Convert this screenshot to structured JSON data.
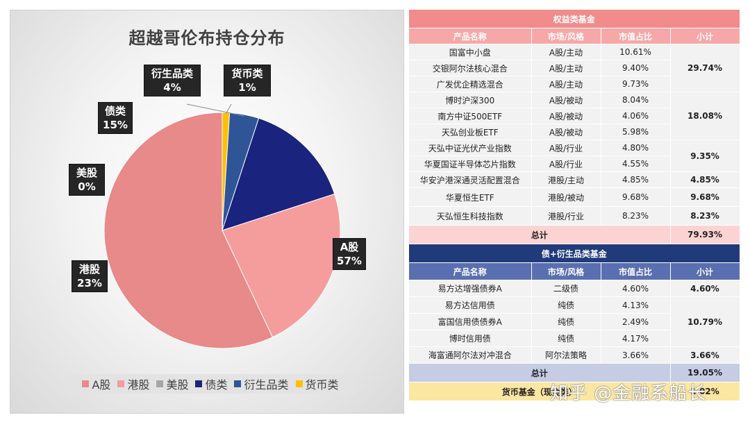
{
  "chart_data": {
    "type": "pie",
    "title": "超越哥伦布持仓分布",
    "categories": [
      "A股",
      "港股",
      "美股",
      "债类",
      "衍生品类",
      "货币类"
    ],
    "values": [
      57,
      23,
      0,
      15,
      4,
      1
    ],
    "value_labels": [
      "57%",
      "23%",
      "0%",
      "15%",
      "4%",
      "1%"
    ],
    "colors": [
      "#e8898a",
      "#f59c9d",
      "#a6a6a6",
      "#1a237e",
      "#2f5597",
      "#ffc000"
    ],
    "legend": "bottom"
  },
  "equity": {
    "section_title": "权益类基金",
    "headers": [
      "产品名称",
      "市场/风格",
      "市值占比",
      "小计"
    ],
    "rows": [
      {
        "name": "国富中小盘",
        "market": "A股/主动",
        "pct": "10.61%"
      },
      {
        "name": "交银阿尔法核心混合",
        "market": "A股/主动",
        "pct": "9.40%"
      },
      {
        "name": "广发优企精选混合",
        "market": "A股/主动",
        "pct": "9.73%"
      },
      {
        "name": "博时沪深300",
        "market": "A股/被动",
        "pct": "8.04%"
      },
      {
        "name": "南方中证500ETF",
        "market": "A股/被动",
        "pct": "4.06%"
      },
      {
        "name": "天弘创业板ETF",
        "market": "A股/被动",
        "pct": "5.98%"
      },
      {
        "name": "天弘中证光伏产业指数",
        "market": "A股/行业",
        "pct": "4.80%"
      },
      {
        "name": "华夏国证半导体芯片指数",
        "market": "A股/行业",
        "pct": "4.55%"
      },
      {
        "name": "华安沪港深通灵活配置混合",
        "market": "港股/主动",
        "pct": "4.85%"
      },
      {
        "name": "华夏恒生ETF",
        "market": "港股/被动",
        "pct": "9.68%"
      },
      {
        "name": "天弘恒生科技指数",
        "market": "港股/行业",
        "pct": "8.23%"
      }
    ],
    "subtotals": [
      "29.74%",
      "18.08%",
      "9.35%",
      "4.85%",
      "9.68%",
      "8.23%"
    ],
    "total_label": "总计",
    "total": "79.93%"
  },
  "bond": {
    "section_title": "债+衍生品类基金",
    "headers": [
      "产品名称",
      "市场/风格",
      "市值占比",
      "小计"
    ],
    "rows": [
      {
        "name": "易方达增强债券A",
        "market": "二级债",
        "pct": "4.60%"
      },
      {
        "name": "易方达信用债",
        "market": "纯债",
        "pct": "4.13%"
      },
      {
        "name": "富国信用债债券A",
        "market": "纯债",
        "pct": "2.49%"
      },
      {
        "name": "博时信用债",
        "market": "纯债",
        "pct": "4.17%"
      },
      {
        "name": "海富通阿尔法对冲混合",
        "market": "阿尔法策略",
        "pct": "3.66%"
      }
    ],
    "subtotals": [
      "4.60%",
      "10.79%",
      "3.66%"
    ],
    "total_label": "总计",
    "total": "19.05%"
  },
  "money": {
    "label": "货币基金（现金类）",
    "value": "1.02%"
  },
  "watermark": "知乎 @金融系船长"
}
